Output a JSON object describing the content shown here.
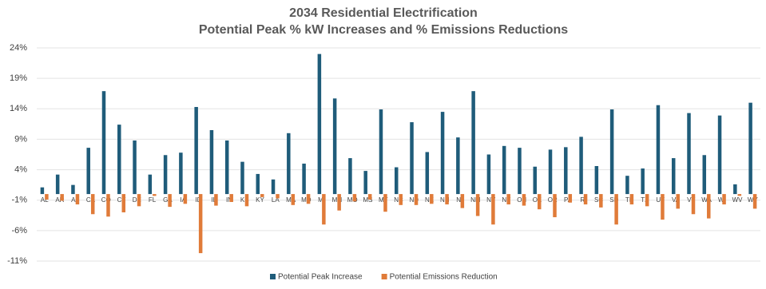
{
  "chart_data": {
    "type": "bar",
    "title": "2034 Residential Electrification",
    "subtitle": "Potential Peak %  kW Increases and % Emissions Reductions",
    "categories": [
      "AL",
      "AR",
      "AZ",
      "CA",
      "CO",
      "CT",
      "DE",
      "FL",
      "GA",
      "IA",
      "ID",
      "IL",
      "IN",
      "KS",
      "KY",
      "LA",
      "MA",
      "MD",
      "MI",
      "MN",
      "MO",
      "MS",
      "MT",
      "NC",
      "ND",
      "NE",
      "NH",
      "NJ",
      "NM",
      "NV",
      "NY",
      "OH",
      "OK",
      "OR",
      "PA",
      "RI",
      "SC",
      "SD",
      "TN",
      "TX",
      "UT",
      "VA",
      "VT",
      "WA",
      "WI",
      "WV",
      "WY"
    ],
    "series": [
      {
        "name": "Potential Peak Increase",
        "color": "#1f5c7a",
        "values": [
          1.1,
          3.2,
          1.5,
          7.6,
          16.9,
          11.4,
          8.8,
          3.2,
          6.4,
          6.8,
          14.3,
          10.5,
          8.8,
          5.3,
          3.3,
          2.4,
          10.0,
          5.0,
          23.0,
          15.7,
          5.9,
          3.8,
          13.9,
          4.4,
          11.8,
          6.9,
          13.5,
          9.3,
          16.9,
          6.5,
          7.9,
          7.6,
          4.5,
          7.3,
          7.7,
          9.4,
          4.6,
          13.9,
          3.0,
          4.2,
          14.6,
          5.9,
          13.3,
          6.4,
          12.9,
          1.6,
          15.0
        ]
      },
      {
        "name": "Potential Emissions Reduction",
        "color": "#e07b39",
        "values": [
          -0.9,
          -1.1,
          -1.7,
          -3.3,
          -3.7,
          -3.0,
          -2.0,
          -0.3,
          -2.1,
          -1.6,
          -9.7,
          -1.9,
          -1.3,
          -2.0,
          -0.5,
          -0.7,
          -1.8,
          -1.6,
          -5.0,
          -2.7,
          -1.2,
          -0.9,
          -2.9,
          -1.8,
          -1.8,
          -1.6,
          -1.7,
          -2.3,
          -3.6,
          -5.0,
          -1.7,
          -1.9,
          -2.5,
          -3.8,
          -1.4,
          -1.7,
          -2.2,
          -5.0,
          -1.7,
          -2.0,
          -4.2,
          -2.4,
          -3.3,
          -4.0,
          -1.7,
          -0.3,
          -2.4
        ]
      }
    ],
    "ylim": [
      -11,
      24
    ],
    "yticks": [
      {
        "value": -11,
        "label": "-11%"
      },
      {
        "value": -6,
        "label": "-6%"
      },
      {
        "value": -1,
        "label": "-1%"
      },
      {
        "value": 4,
        "label": "4%"
      },
      {
        "value": 9,
        "label": "9%"
      },
      {
        "value": 14,
        "label": "14%"
      },
      {
        "value": 19,
        "label": "19%"
      },
      {
        "value": 24,
        "label": "24%"
      }
    ],
    "grid": true,
    "legend": "bottom"
  }
}
